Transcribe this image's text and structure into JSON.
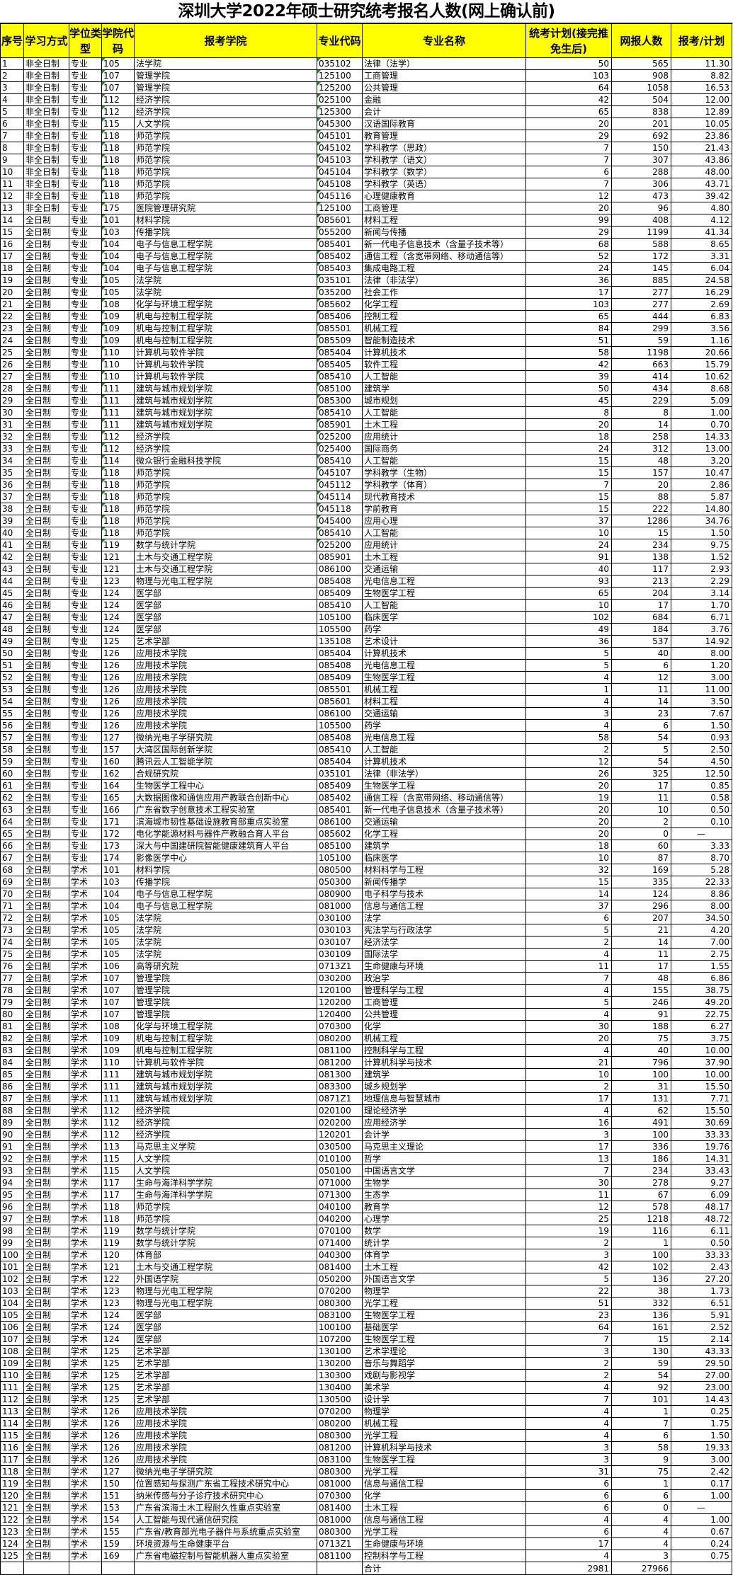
{
  "title": "深圳大学2022年硕士研究统考报名人数(网上确认前)",
  "headers": [
    "序号",
    "学习方式",
    "学位类型",
    "学院代码",
    "报考学院",
    "专业代码",
    "专业名称",
    "统考计划(接完推免生后)",
    "网报人数",
    "报考/计划"
  ],
  "header_color": "#FFFF00",
  "rows": [
    [
      "1",
      "非全日制",
      "专业",
      "105",
      "法学院",
      "035102",
      "法律（法学）",
      "50",
      "565",
      "11.30"
    ],
    [
      "2",
      "非全日制",
      "专业",
      "107",
      "管理学院",
      "125100",
      "工商管理",
      "103",
      "908",
      "8.82"
    ],
    [
      "3",
      "非全日制",
      "专业",
      "107",
      "管理学院",
      "125200",
      "公共管理",
      "64",
      "1058",
      "16.53"
    ],
    [
      "4",
      "非全日制",
      "专业",
      "112",
      "经济学院",
      "025100",
      "金融",
      "42",
      "504",
      "12.00"
    ],
    [
      "5",
      "非全日制",
      "专业",
      "112",
      "经济学院",
      "125300",
      "会计",
      "65",
      "838",
      "12.89"
    ],
    [
      "6",
      "非全日制",
      "专业",
      "115",
      "人文学院",
      "045300",
      "汉语国际教育",
      "20",
      "201",
      "10.05"
    ],
    [
      "7",
      "非全日制",
      "专业",
      "118",
      "师范学院",
      "045101",
      "教育管理",
      "29",
      "692",
      "23.86"
    ],
    [
      "8",
      "非全日制",
      "专业",
      "118",
      "师范学院",
      "045102",
      "学科教学（思政）",
      "7",
      "150",
      "21.43"
    ],
    [
      "9",
      "非全日制",
      "专业",
      "118",
      "师范学院",
      "045103",
      "学科教学（语文）",
      "7",
      "307",
      "43.86"
    ],
    [
      "10",
      "非全日制",
      "专业",
      "118",
      "师范学院",
      "045104",
      "学科教学（数学）",
      "6",
      "288",
      "48.00"
    ],
    [
      "11",
      "非全日制",
      "专业",
      "118",
      "师范学院",
      "045108",
      "学科教学（英语）",
      "7",
      "306",
      "43.71"
    ],
    [
      "12",
      "非全日制",
      "专业",
      "118",
      "师范学院",
      "045116",
      "心理健康教育",
      "12",
      "473",
      "39.42"
    ],
    [
      "13",
      "非全日制",
      "专业",
      "175",
      "医院管理研究院",
      "125100",
      "工商管理",
      "20",
      "96",
      "4.80"
    ],
    [
      "14",
      "全日制",
      "专业",
      "101",
      "材料学院",
      "085601",
      "材料工程",
      "99",
      "408",
      "4.12"
    ],
    [
      "15",
      "全日制",
      "专业",
      "103",
      "传播学院",
      "055200",
      "新闻与传播",
      "29",
      "1199",
      "41.34"
    ],
    [
      "16",
      "全日制",
      "专业",
      "104",
      "电子与信息工程学院",
      "085401",
      "新一代电子信息技术（含量子技术等）",
      "68",
      "588",
      "8.65"
    ],
    [
      "17",
      "全日制",
      "专业",
      "104",
      "电子与信息工程学院",
      "085402",
      "通信工程（含宽带网络、移动通信等）",
      "52",
      "172",
      "3.31"
    ],
    [
      "18",
      "全日制",
      "专业",
      "104",
      "电子与信息工程学院",
      "085403",
      "集成电路工程",
      "24",
      "145",
      "6.04"
    ],
    [
      "19",
      "全日制",
      "专业",
      "105",
      "法学院",
      "035101",
      "法律（非法学）",
      "36",
      "885",
      "24.58"
    ],
    [
      "20",
      "全日制",
      "专业",
      "105",
      "法学院",
      "035200",
      "社会工作",
      "17",
      "277",
      "16.29"
    ],
    [
      "21",
      "全日制",
      "专业",
      "108",
      "化学与环境工程学院",
      "085602",
      "化学工程",
      "103",
      "277",
      "2.69"
    ],
    [
      "22",
      "全日制",
      "专业",
      "109",
      "机电与控制工程学院",
      "085406",
      "控制工程",
      "65",
      "444",
      "6.83"
    ],
    [
      "23",
      "全日制",
      "专业",
      "109",
      "机电与控制工程学院",
      "085501",
      "机械工程",
      "84",
      "299",
      "3.56"
    ],
    [
      "24",
      "全日制",
      "专业",
      "109",
      "机电与控制工程学院",
      "085509",
      "智能制造技术",
      "51",
      "59",
      "1.16"
    ],
    [
      "25",
      "全日制",
      "专业",
      "110",
      "计算机与软件学院",
      "085404",
      "计算机技术",
      "58",
      "1198",
      "20.66"
    ],
    [
      "26",
      "全日制",
      "专业",
      "110",
      "计算机与软件学院",
      "085405",
      "软件工程",
      "42",
      "663",
      "15.79"
    ],
    [
      "27",
      "全日制",
      "专业",
      "110",
      "计算机与软件学院",
      "085410",
      "人工智能",
      "39",
      "414",
      "10.62"
    ],
    [
      "28",
      "全日制",
      "专业",
      "111",
      "建筑与城市规划学院",
      "085100",
      "建筑学",
      "50",
      "434",
      "8.68"
    ],
    [
      "29",
      "全日制",
      "专业",
      "111",
      "建筑与城市规划学院",
      "085300",
      "城市规划",
      "45",
      "229",
      "5.09"
    ],
    [
      "30",
      "全日制",
      "专业",
      "111",
      "建筑与城市规划学院",
      "085410",
      "人工智能",
      "8",
      "8",
      "1.00"
    ],
    [
      "31",
      "全日制",
      "专业",
      "111",
      "建筑与城市规划学院",
      "085901",
      "土木工程",
      "20",
      "14",
      "0.70"
    ],
    [
      "32",
      "全日制",
      "专业",
      "112",
      "经济学院",
      "025200",
      "应用统计",
      "18",
      "258",
      "14.33"
    ],
    [
      "33",
      "全日制",
      "专业",
      "112",
      "经济学院",
      "025400",
      "国际商务",
      "24",
      "312",
      "13.00"
    ],
    [
      "34",
      "全日制",
      "专业",
      "114",
      "微众银行金融科技学院",
      "085410",
      "人工智能",
      "15",
      "48",
      "3.20"
    ],
    [
      "35",
      "全日制",
      "专业",
      "118",
      "师范学院",
      "045107",
      "学科教学（生物）",
      "15",
      "157",
      "10.47"
    ],
    [
      "36",
      "全日制",
      "专业",
      "118",
      "师范学院",
      "045112",
      "学科教学（体育）",
      "7",
      "20",
      "2.86"
    ],
    [
      "37",
      "全日制",
      "专业",
      "118",
      "师范学院",
      "045114",
      "现代教育技术",
      "15",
      "88",
      "5.87"
    ],
    [
      "38",
      "全日制",
      "专业",
      "118",
      "师范学院",
      "045118",
      "学前教育",
      "15",
      "222",
      "14.80"
    ],
    [
      "39",
      "全日制",
      "专业",
      "118",
      "师范学院",
      "045400",
      "应用心理",
      "37",
      "1286",
      "34.76"
    ],
    [
      "40",
      "全日制",
      "专业",
      "118",
      "师范学院",
      "085410",
      "人工智能",
      "10",
      "15",
      "1.50"
    ],
    [
      "41",
      "全日制",
      "专业",
      "119",
      "数学与统计学院",
      "025200",
      "应用统计",
      "24",
      "234",
      "9.75"
    ],
    [
      "42",
      "全日制",
      "专业",
      "121",
      "土木与交通工程学院",
      "085901",
      "土木工程",
      "91",
      "138",
      "1.52"
    ],
    [
      "43",
      "全日制",
      "专业",
      "121",
      "土木与交通工程学院",
      "086100",
      "交通运输",
      "40",
      "117",
      "2.93"
    ],
    [
      "44",
      "全日制",
      "专业",
      "123",
      "物理与光电工程学院",
      "085408",
      "光电信息工程",
      "93",
      "213",
      "2.29"
    ],
    [
      "45",
      "全日制",
      "专业",
      "124",
      "医学部",
      "085409",
      "生物医学工程",
      "65",
      "204",
      "3.14"
    ],
    [
      "46",
      "全日制",
      "专业",
      "124",
      "医学部",
      "085410",
      "人工智能",
      "10",
      "17",
      "1.70"
    ],
    [
      "47",
      "全日制",
      "专业",
      "124",
      "医学部",
      "105100",
      "临床医学",
      "102",
      "684",
      "6.71"
    ],
    [
      "48",
      "全日制",
      "专业",
      "124",
      "医学部",
      "105500",
      "药学",
      "49",
      "184",
      "3.76"
    ],
    [
      "49",
      "全日制",
      "专业",
      "125",
      "艺术学部",
      "135108",
      "艺术设计",
      "36",
      "537",
      "14.92"
    ],
    [
      "50",
      "全日制",
      "专业",
      "126",
      "应用技术学院",
      "085404",
      "计算机技术",
      "5",
      "40",
      "8.00"
    ],
    [
      "51",
      "全日制",
      "专业",
      "126",
      "应用技术学院",
      "085408",
      "光电信息工程",
      "5",
      "6",
      "1.20"
    ],
    [
      "52",
      "全日制",
      "专业",
      "126",
      "应用技术学院",
      "085409",
      "生物医学工程",
      "4",
      "12",
      "3.00"
    ],
    [
      "53",
      "全日制",
      "专业",
      "126",
      "应用技术学院",
      "085501",
      "机械工程",
      "1",
      "11",
      "11.00"
    ],
    [
      "54",
      "全日制",
      "专业",
      "126",
      "应用技术学院",
      "085601",
      "材料工程",
      "4",
      "14",
      "3.50"
    ],
    [
      "55",
      "全日制",
      "专业",
      "126",
      "应用技术学院",
      "086100",
      "交通运输",
      "3",
      "23",
      "7.67"
    ],
    [
      "56",
      "全日制",
      "专业",
      "126",
      "应用技术学院",
      "105500",
      "药学",
      "4",
      "6",
      "1.50"
    ],
    [
      "57",
      "全日制",
      "专业",
      "127",
      "微纳光电子学研究院",
      "085408",
      "光电信息工程",
      "58",
      "54",
      "0.93"
    ],
    [
      "58",
      "全日制",
      "专业",
      "157",
      "大湾区国际创新学院",
      "085410",
      "人工智能",
      "2",
      "5",
      "2.50"
    ],
    [
      "59",
      "全日制",
      "专业",
      "160",
      "腾讯云人工智能学院",
      "085404",
      "计算机技术",
      "12",
      "54",
      "4.50"
    ],
    [
      "60",
      "全日制",
      "专业",
      "162",
      "合规研究院",
      "035101",
      "法律（非法学）",
      "26",
      "325",
      "12.50"
    ],
    [
      "61",
      "全日制",
      "专业",
      "164",
      "生物医学工程中心",
      "085409",
      "生物医学工程",
      "20",
      "17",
      "0.85"
    ],
    [
      "62",
      "全日制",
      "专业",
      "165",
      "大数据图像和通信应用产教联合创新中心",
      "085402",
      "通信工程（含宽带网络、移动通信等）",
      "19",
      "11",
      "0.58"
    ],
    [
      "63",
      "全日制",
      "专业",
      "166",
      "广东省数字创意技术工程实验室",
      "085401",
      "新一代电子信息技术（含量子技术等）",
      "20",
      "10",
      "0.50"
    ],
    [
      "64",
      "全日制",
      "专业",
      "171",
      "滨海城市韧性基础设施教育部重点实验室",
      "086100",
      "交通运输",
      "20",
      "2",
      "0.10"
    ],
    [
      "65",
      "全日制",
      "专业",
      "172",
      "电化学能源材料与器件产教融合育人平台",
      "085602",
      "化学工程",
      "20",
      "0",
      "—"
    ],
    [
      "66",
      "全日制",
      "专业",
      "173",
      "深大与中国建研院智能健康建筑育人平台",
      "085100",
      "建筑学",
      "18",
      "60",
      "3.33"
    ],
    [
      "67",
      "全日制",
      "专业",
      "174",
      "影像医学中心",
      "105100",
      "临床医学",
      "10",
      "87",
      "8.70"
    ],
    [
      "68",
      "全日制",
      "学术",
      "101",
      "材料学院",
      "080500",
      "材料科学与工程",
      "32",
      "169",
      "5.28"
    ],
    [
      "69",
      "全日制",
      "学术",
      "103",
      "传播学院",
      "050300",
      "新闻传播学",
      "15",
      "335",
      "22.33"
    ],
    [
      "70",
      "全日制",
      "学术",
      "104",
      "电子与信息工程学院",
      "080900",
      "电子科学与技术",
      "14",
      "124",
      "8.86"
    ],
    [
      "71",
      "全日制",
      "学术",
      "104",
      "电子与信息工程学院",
      "081000",
      "信息与通信工程",
      "37",
      "296",
      "8.00"
    ],
    [
      "72",
      "全日制",
      "学术",
      "105",
      "法学院",
      "030100",
      "法学",
      "6",
      "207",
      "34.50"
    ],
    [
      "73",
      "全日制",
      "学术",
      "105",
      "法学院",
      "030103",
      "宪法学与行政法学",
      "5",
      "21",
      "4.20"
    ],
    [
      "74",
      "全日制",
      "学术",
      "105",
      "法学院",
      "030107",
      "经济法学",
      "2",
      "14",
      "7.00"
    ],
    [
      "75",
      "全日制",
      "学术",
      "105",
      "法学院",
      "030109",
      "国际法学",
      "4",
      "11",
      "2.75"
    ],
    [
      "76",
      "全日制",
      "学术",
      "106",
      "高等研究院",
      "0713Z1",
      "生命健康与环境",
      "11",
      "17",
      "1.55"
    ],
    [
      "77",
      "全日制",
      "学术",
      "107",
      "管理学院",
      "030200",
      "政治学",
      "7",
      "48",
      "6.86"
    ],
    [
      "78",
      "全日制",
      "学术",
      "107",
      "管理学院",
      "120100",
      "管理科学与工程",
      "4",
      "155",
      "38.75"
    ],
    [
      "79",
      "全日制",
      "学术",
      "107",
      "管理学院",
      "120200",
      "工商管理",
      "5",
      "246",
      "49.20"
    ],
    [
      "80",
      "全日制",
      "学术",
      "107",
      "管理学院",
      "120400",
      "公共管理",
      "4",
      "91",
      "22.75"
    ],
    [
      "81",
      "全日制",
      "学术",
      "108",
      "化学与环境工程学院",
      "070300",
      "化学",
      "30",
      "188",
      "6.27"
    ],
    [
      "82",
      "全日制",
      "学术",
      "109",
      "机电与控制工程学院",
      "080200",
      "机械工程",
      "20",
      "75",
      "3.75"
    ],
    [
      "83",
      "全日制",
      "学术",
      "109",
      "机电与控制工程学院",
      "081100",
      "控制科学与工程",
      "4",
      "40",
      "10.00"
    ],
    [
      "84",
      "全日制",
      "学术",
      "110",
      "计算机与软件学院",
      "081200",
      "计算机科学与技术",
      "21",
      "796",
      "37.90"
    ],
    [
      "85",
      "全日制",
      "学术",
      "111",
      "建筑与城市规划学院",
      "081300",
      "建筑学",
      "10",
      "100",
      "10.00"
    ],
    [
      "86",
      "全日制",
      "学术",
      "111",
      "建筑与城市规划学院",
      "083300",
      "城乡规划学",
      "2",
      "31",
      "15.50"
    ],
    [
      "87",
      "全日制",
      "学术",
      "111",
      "建筑与城市规划学院",
      "0871Z1",
      "地理信息与智慧城市",
      "17",
      "131",
      "7.71"
    ],
    [
      "88",
      "全日制",
      "学术",
      "112",
      "经济学院",
      "020100",
      "理论经济学",
      "4",
      "62",
      "15.50"
    ],
    [
      "89",
      "全日制",
      "学术",
      "112",
      "经济学院",
      "020200",
      "应用经济学",
      "16",
      "491",
      "30.69"
    ],
    [
      "90",
      "全日制",
      "学术",
      "112",
      "经济学院",
      "120201",
      "会计学",
      "3",
      "100",
      "33.33"
    ],
    [
      "91",
      "全日制",
      "学术",
      "113",
      "马克思主义学院",
      "030500",
      "马克思主义理论",
      "17",
      "336",
      "19.76"
    ],
    [
      "92",
      "全日制",
      "学术",
      "115",
      "人文学院",
      "010100",
      "哲学",
      "13",
      "186",
      "14.31"
    ],
    [
      "93",
      "全日制",
      "学术",
      "115",
      "人文学院",
      "050100",
      "中国语言文学",
      "7",
      "234",
      "33.43"
    ],
    [
      "94",
      "全日制",
      "学术",
      "117",
      "生命与海洋科学学院",
      "071000",
      "生物学",
      "30",
      "278",
      "9.27"
    ],
    [
      "95",
      "全日制",
      "学术",
      "117",
      "生命与海洋科学学院",
      "071300",
      "生态学",
      "11",
      "67",
      "6.09"
    ],
    [
      "96",
      "全日制",
      "学术",
      "118",
      "师范学院",
      "040100",
      "教育学",
      "12",
      "578",
      "48.17"
    ],
    [
      "97",
      "全日制",
      "学术",
      "118",
      "师范学院",
      "040200",
      "心理学",
      "25",
      "1218",
      "48.72"
    ],
    [
      "98",
      "全日制",
      "学术",
      "119",
      "数学与统计学院",
      "070100",
      "数学",
      "19",
      "116",
      "6.11"
    ],
    [
      "99",
      "全日制",
      "学术",
      "119",
      "数学与统计学院",
      "071400",
      "统计学",
      "2",
      "1",
      "0.50"
    ],
    [
      "100",
      "全日制",
      "学术",
      "120",
      "体育部",
      "040300",
      "体育学",
      "3",
      "100",
      "33.33"
    ],
    [
      "101",
      "全日制",
      "学术",
      "121",
      "土木与交通工程学院",
      "081400",
      "土木工程",
      "42",
      "102",
      "2.43"
    ],
    [
      "102",
      "全日制",
      "学术",
      "122",
      "外国语学院",
      "050200",
      "外国语言文学",
      "5",
      "136",
      "27.20"
    ],
    [
      "103",
      "全日制",
      "学术",
      "123",
      "物理与光电工程学院",
      "070200",
      "物理学",
      "22",
      "38",
      "1.73"
    ],
    [
      "104",
      "全日制",
      "学术",
      "123",
      "物理与光电工程学院",
      "080300",
      "光学工程",
      "51",
      "332",
      "6.51"
    ],
    [
      "105",
      "全日制",
      "学术",
      "124",
      "医学部",
      "083100",
      "生物医学工程",
      "23",
      "136",
      "5.91"
    ],
    [
      "106",
      "全日制",
      "学术",
      "124",
      "医学部",
      "100100",
      "基础医学",
      "64",
      "161",
      "2.52"
    ],
    [
      "107",
      "全日制",
      "学术",
      "124",
      "医学部",
      "107200",
      "生物医学工程",
      "7",
      "15",
      "2.14"
    ],
    [
      "108",
      "全日制",
      "学术",
      "125",
      "艺术学部",
      "130100",
      "艺术学理论",
      "3",
      "130",
      "43.33"
    ],
    [
      "109",
      "全日制",
      "学术",
      "125",
      "艺术学部",
      "130200",
      "音乐与舞蹈学",
      "2",
      "59",
      "29.50"
    ],
    [
      "110",
      "全日制",
      "学术",
      "125",
      "艺术学部",
      "130300",
      "戏剧与影视学",
      "2",
      "54",
      "27.00"
    ],
    [
      "111",
      "全日制",
      "学术",
      "125",
      "艺术学部",
      "130400",
      "美术学",
      "4",
      "92",
      "23.00"
    ],
    [
      "112",
      "全日制",
      "学术",
      "125",
      "艺术学部",
      "130500",
      "设计学",
      "7",
      "101",
      "14.43"
    ],
    [
      "113",
      "全日制",
      "学术",
      "126",
      "应用技术学院",
      "070200",
      "物理学",
      "4",
      "1",
      "0.25"
    ],
    [
      "114",
      "全日制",
      "学术",
      "126",
      "应用技术学院",
      "080200",
      "机械工程",
      "4",
      "7",
      "1.75"
    ],
    [
      "115",
      "全日制",
      "学术",
      "126",
      "应用技术学院",
      "080300",
      "光学工程",
      "4",
      "6",
      "1.50"
    ],
    [
      "116",
      "全日制",
      "学术",
      "126",
      "应用技术学院",
      "081200",
      "计算机科学与技术",
      "3",
      "58",
      "19.33"
    ],
    [
      "117",
      "全日制",
      "学术",
      "126",
      "应用技术学院",
      "083100",
      "生物医学工程",
      "3",
      "9",
      "3.00"
    ],
    [
      "118",
      "全日制",
      "学术",
      "127",
      "微纳光电子学研究院",
      "080300",
      "光学工程",
      "31",
      "75",
      "2.42"
    ],
    [
      "119",
      "全日制",
      "学术",
      "150",
      "位置感知与探测广东省工程技术研究中心",
      "081000",
      "信息与通信工程",
      "6",
      "1",
      "0.17"
    ],
    [
      "120",
      "全日制",
      "学术",
      "151",
      "纳米传感与分子诊疗技术研究中心",
      "070300",
      "化学",
      "6",
      "6",
      "1.00"
    ],
    [
      "121",
      "全日制",
      "学术",
      "153",
      "广东省滨海土木工程耐久性重点实验室",
      "081400",
      "土木工程",
      "6",
      "0",
      "—"
    ],
    [
      "122",
      "全日制",
      "学术",
      "154",
      "人工智能与现代通信研究院",
      "081000",
      "信息与通信工程",
      "4",
      "4",
      "1.00"
    ],
    [
      "123",
      "全日制",
      "学术",
      "155",
      "广东省/教育部光电子器件与系统重点实验室",
      "080300",
      "光学工程",
      "6",
      "4",
      "0.67"
    ],
    [
      "124",
      "全日制",
      "学术",
      "159",
      "环境资源与生命健康平台",
      "0713Z1",
      "生命健康与环境",
      "17",
      "4",
      "0.24"
    ],
    [
      "125",
      "全日制",
      "学术",
      "169",
      "广东省电磁控制与智能机器人重点实验室",
      "081100",
      "控制科学与工程",
      "4",
      "3",
      "0.75"
    ]
  ],
  "total": {
    "label": "合计",
    "plan": "2981",
    "applicants": "27966"
  }
}
